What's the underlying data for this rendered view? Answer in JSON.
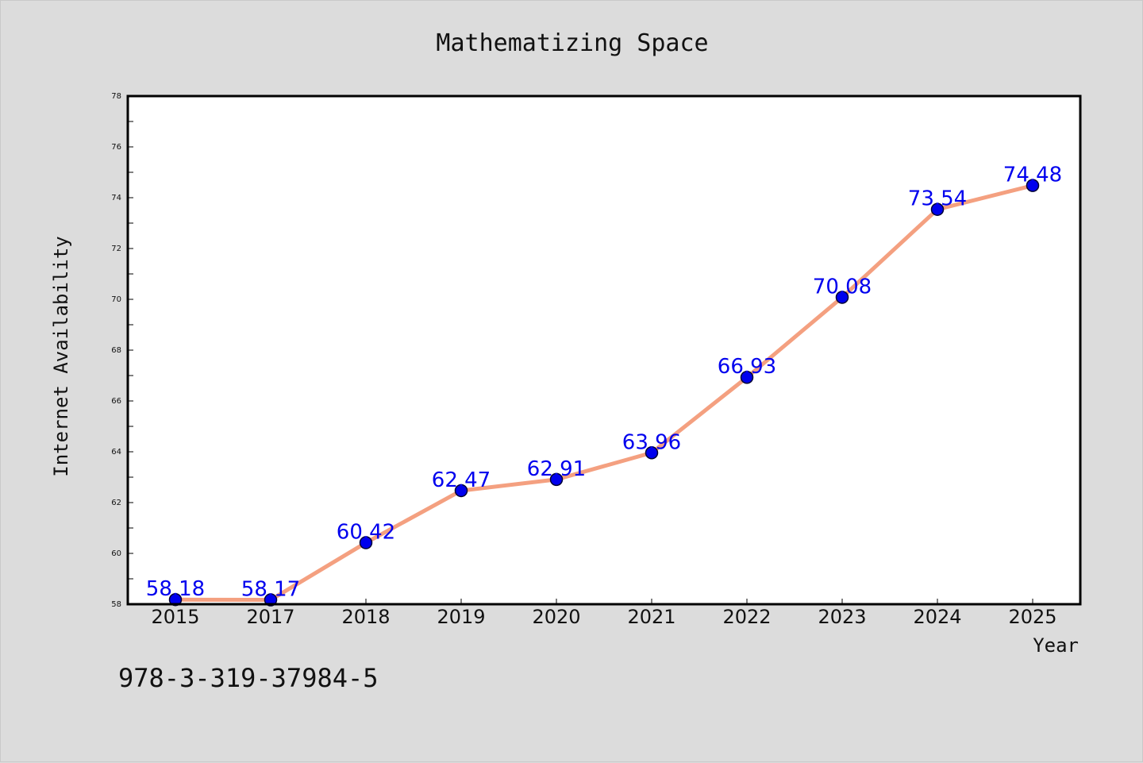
{
  "chart_data": {
    "type": "line",
    "title": "Mathematizing Space",
    "xlabel": "Year",
    "ylabel": "Internet Availability",
    "categories": [
      "2015",
      "2017",
      "2018",
      "2019",
      "2020",
      "2021",
      "2022",
      "2023",
      "2024",
      "2025"
    ],
    "series": [
      {
        "values": [
          58.18,
          58.17,
          60.42,
          62.47,
          62.91,
          63.96,
          66.93,
          70.08,
          73.54,
          74.48
        ],
        "labels": [
          "58.18",
          "58.17",
          "60.42",
          "62.47",
          "62.91",
          "63.96",
          "66.93",
          "70.08",
          "73.54",
          "74.48"
        ]
      }
    ],
    "ylim": [
      58,
      78
    ],
    "yticks": [
      "58",
      "60",
      "62",
      "64",
      "66",
      "68",
      "70",
      "72",
      "74",
      "76",
      "78"
    ],
    "grid": false,
    "legend": "none"
  },
  "footnote": "978-3-319-37984-5",
  "colors": {
    "line": "#f4a080",
    "marker_fill": "#0000ee",
    "marker_edge": "#000033",
    "data_label": "#0000ee",
    "plot_bg": "#ffffff",
    "figure_bg": "#dcdcdc"
  }
}
